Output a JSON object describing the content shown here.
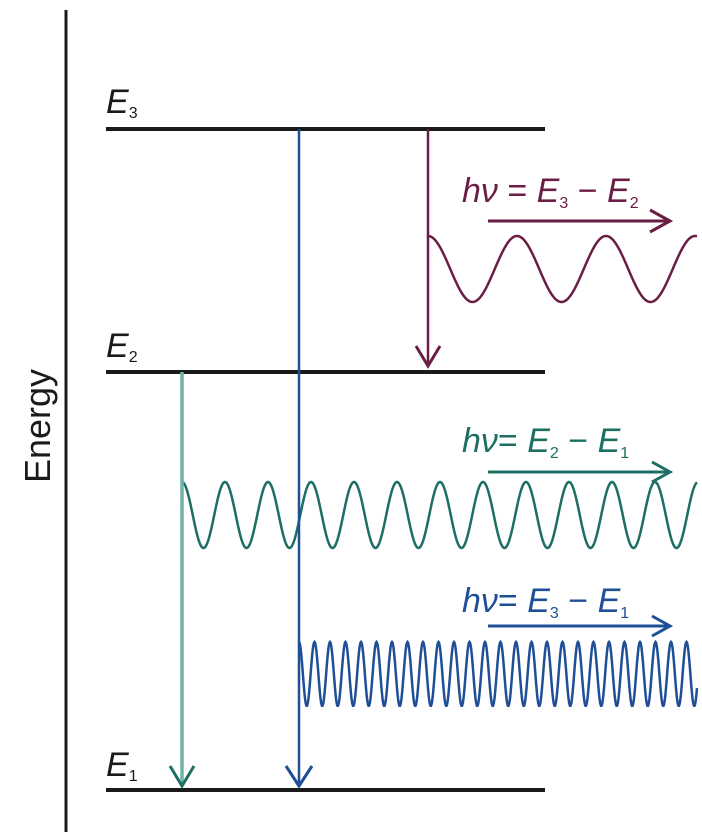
{
  "axis_label": "Energy",
  "levels": [
    {
      "letter": "E",
      "sub": "3"
    },
    {
      "letter": "E",
      "sub": "2"
    },
    {
      "letter": "E",
      "sub": "1"
    }
  ],
  "transitions": [
    {
      "id": "e3-e2",
      "color": "#6b1e45",
      "eq": {
        "hv": "hν",
        "equals": " = ",
        "a": "E",
        "a_sub": "3",
        "minus": " − ",
        "b": "E",
        "b_sub": "2"
      }
    },
    {
      "id": "e2-e1",
      "color": "#1d6e63",
      "eq": {
        "hv": "hν",
        "equals": "= ",
        "a": "E",
        "a_sub": "2",
        "minus": " − ",
        "b": "E",
        "b_sub": "1"
      }
    },
    {
      "id": "e3-e1",
      "color": "#1f4f96",
      "eq": {
        "hv": "hν",
        "equals": "= ",
        "a": "E",
        "a_sub": "3",
        "minus": " − ",
        "b": "E",
        "b_sub": "1"
      }
    }
  ],
  "colors": {
    "level_line": "#1a1a1a",
    "arrow_e2_e1": "#6fb3a6",
    "arrow_e3_e1": "#1f4f96"
  }
}
